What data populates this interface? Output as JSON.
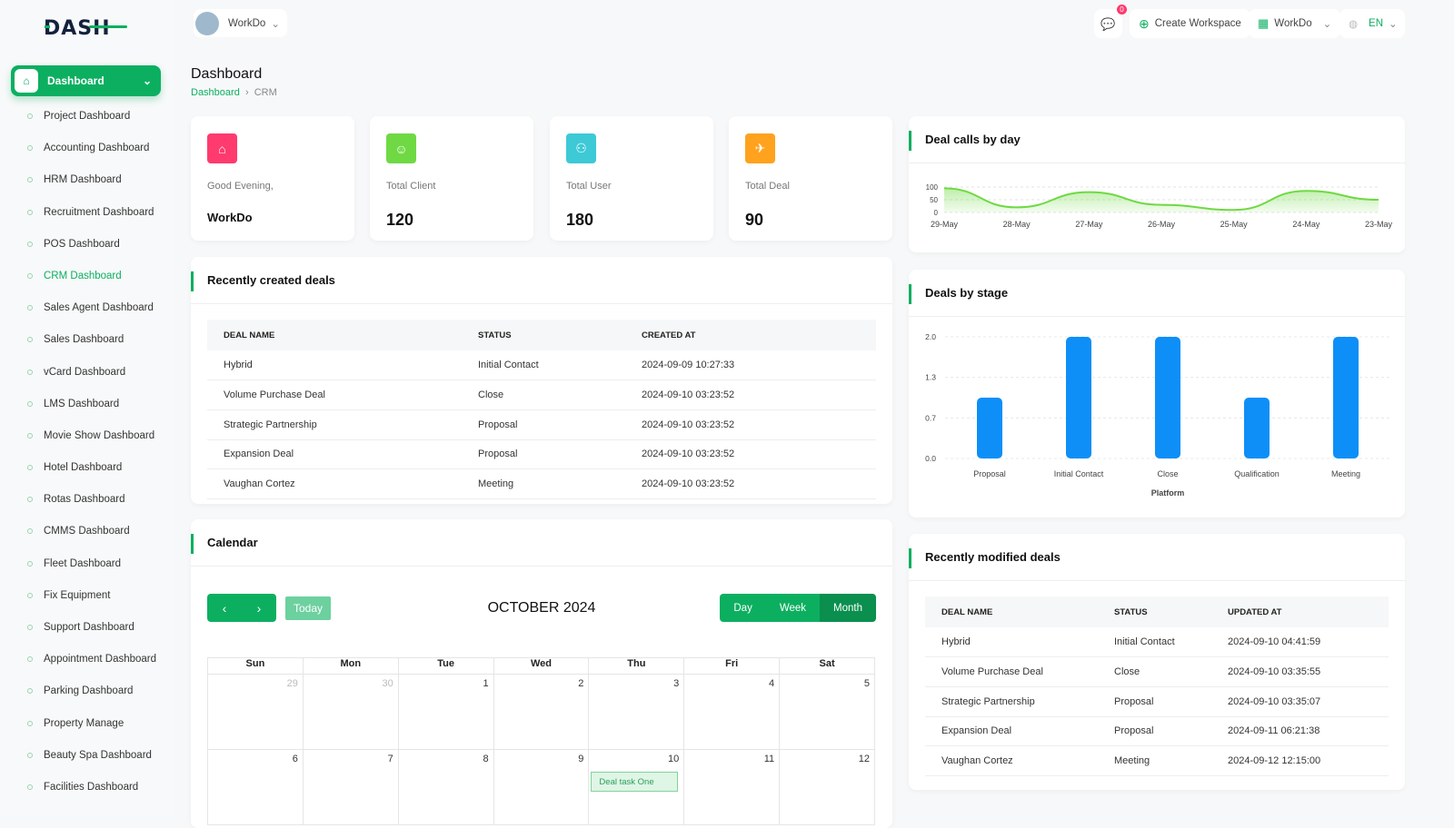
{
  "brand": {
    "logo": "DASH"
  },
  "header": {
    "workspace": "WorkDo",
    "notif_count": "0",
    "create_workspace": "Create Workspace",
    "workspace_switch": "WorkDo",
    "lang": "EN"
  },
  "sidebar": {
    "dashboard": "Dashboard",
    "items": [
      {
        "label": "Project Dashboard"
      },
      {
        "label": "Accounting Dashboard"
      },
      {
        "label": "HRM Dashboard"
      },
      {
        "label": "Recruitment Dashboard"
      },
      {
        "label": "POS Dashboard"
      },
      {
        "label": "CRM Dashboard",
        "active": true
      },
      {
        "label": "Sales Agent Dashboard"
      },
      {
        "label": "Sales Dashboard"
      },
      {
        "label": "vCard Dashboard"
      },
      {
        "label": "LMS Dashboard"
      },
      {
        "label": "Movie Show Dashboard"
      },
      {
        "label": "Hotel Dashboard"
      },
      {
        "label": "Rotas Dashboard"
      },
      {
        "label": "CMMS Dashboard"
      },
      {
        "label": "Fleet Dashboard"
      },
      {
        "label": "Fix Equipment"
      },
      {
        "label": "Support Dashboard"
      },
      {
        "label": "Appointment Dashboard"
      },
      {
        "label": "Parking Dashboard"
      },
      {
        "label": "Property Manage"
      },
      {
        "label": "Beauty Spa Dashboard"
      },
      {
        "label": "Facilities Dashboard"
      }
    ]
  },
  "page": {
    "title": "Dashboard",
    "breadcrumb": [
      "Dashboard",
      "CRM"
    ]
  },
  "stats": [
    {
      "label": "Good Evening,",
      "value": "WorkDo",
      "color": "#ff3a6e",
      "icon": "home-icon"
    },
    {
      "label": "Total Client",
      "value": "120",
      "color": "#6fd943",
      "icon": "user-icon"
    },
    {
      "label": "Total User",
      "value": "180",
      "color": "#3ec9d6",
      "icon": "users-icon"
    },
    {
      "label": "Total Deal",
      "value": "90",
      "color": "#ffa21d",
      "icon": "rocket-icon"
    }
  ],
  "recent_deals": {
    "title": "Recently created deals",
    "columns": [
      "DEAL NAME",
      "STATUS",
      "CREATED AT"
    ],
    "rows": [
      [
        "Hybrid",
        "Initial Contact",
        "2024-09-09 10:27:33"
      ],
      [
        "Volume Purchase Deal",
        "Close",
        "2024-09-10 03:23:52"
      ],
      [
        "Strategic Partnership",
        "Proposal",
        "2024-09-10 03:23:52"
      ],
      [
        "Expansion Deal",
        "Proposal",
        "2024-09-10 03:23:52"
      ],
      [
        "Vaughan Cortez",
        "Meeting",
        "2024-09-10 03:23:52"
      ]
    ]
  },
  "modified_deals": {
    "title": "Recently modified deals",
    "columns": [
      "DEAL NAME",
      "STATUS",
      "UPDATED AT"
    ],
    "rows": [
      [
        "Hybrid",
        "Initial Contact",
        "2024-09-10 04:41:59"
      ],
      [
        "Volume Purchase Deal",
        "Close",
        "2024-09-10 03:35:55"
      ],
      [
        "Strategic Partnership",
        "Proposal",
        "2024-09-10 03:35:07"
      ],
      [
        "Expansion Deal",
        "Proposal",
        "2024-09-11 06:21:38"
      ],
      [
        "Vaughan Cortez",
        "Meeting",
        "2024-09-12 12:15:00"
      ]
    ]
  },
  "calendar": {
    "title": "Calendar",
    "today": "Today",
    "month": "OCTOBER 2024",
    "views": [
      "Day",
      "Week",
      "Month"
    ],
    "active_view": "Month",
    "weekdays": [
      "Sun",
      "Mon",
      "Tue",
      "Wed",
      "Thu",
      "Fri",
      "Sat"
    ],
    "days": [
      {
        "n": "29",
        "other": true
      },
      {
        "n": "30",
        "other": true
      },
      {
        "n": "1"
      },
      {
        "n": "2"
      },
      {
        "n": "3"
      },
      {
        "n": "4"
      },
      {
        "n": "5"
      },
      {
        "n": "6"
      },
      {
        "n": "7"
      },
      {
        "n": "8"
      },
      {
        "n": "9"
      },
      {
        "n": "10",
        "event": "Deal task One"
      },
      {
        "n": "11"
      },
      {
        "n": "12"
      }
    ]
  },
  "chart_data": [
    {
      "title": "Deal calls by day",
      "type": "area",
      "x": [
        "29-May",
        "28-May",
        "27-May",
        "26-May",
        "25-May",
        "24-May",
        "23-May"
      ],
      "values": [
        95,
        20,
        80,
        30,
        10,
        85,
        50
      ],
      "yticks": [
        0,
        50,
        100
      ],
      "ylim": [
        0,
        100
      ],
      "color": "#6fd943",
      "grid": true
    },
    {
      "title": "Deals by stage",
      "type": "bar",
      "categories": [
        "Proposal",
        "Initial Contact",
        "Close",
        "Qualification",
        "Meeting"
      ],
      "values": [
        1,
        2,
        2,
        1,
        2
      ],
      "yticks": [
        "0.0",
        "0.7",
        "1.3",
        "2.0"
      ],
      "ylim": [
        0,
        2
      ],
      "xlabel": "Platform",
      "color": "#0d8ff7",
      "grid": true
    }
  ]
}
